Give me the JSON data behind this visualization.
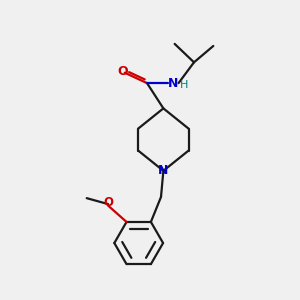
{
  "background_color": "#f0f0f0",
  "line_color": "#1a1a1a",
  "nitrogen_color": "#0000cd",
  "oxygen_color": "#cc0000",
  "nh_color": "#008080",
  "line_width": 1.6,
  "figsize": [
    3.0,
    3.0
  ],
  "dpi": 100,
  "xlim": [
    0,
    10
  ],
  "ylim": [
    0,
    10
  ]
}
